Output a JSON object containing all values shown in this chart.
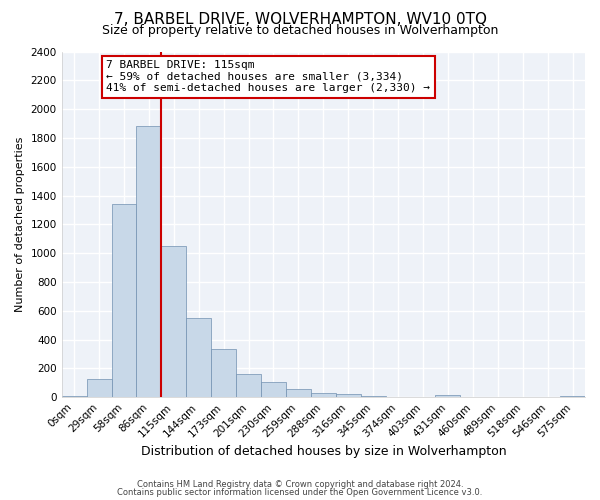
{
  "title": "7, BARBEL DRIVE, WOLVERHAMPTON, WV10 0TQ",
  "subtitle": "Size of property relative to detached houses in Wolverhampton",
  "xlabel": "Distribution of detached houses by size in Wolverhampton",
  "ylabel": "Number of detached properties",
  "footer_lines": [
    "Contains HM Land Registry data © Crown copyright and database right 2024.",
    "Contains public sector information licensed under the Open Government Licence v3.0."
  ],
  "bin_labels": [
    "0sqm",
    "29sqm",
    "58sqm",
    "86sqm",
    "115sqm",
    "144sqm",
    "173sqm",
    "201sqm",
    "230sqm",
    "259sqm",
    "288sqm",
    "316sqm",
    "345sqm",
    "374sqm",
    "403sqm",
    "431sqm",
    "460sqm",
    "489sqm",
    "518sqm",
    "546sqm",
    "575sqm"
  ],
  "bar_values": [
    10,
    125,
    1340,
    1880,
    1050,
    550,
    335,
    160,
    105,
    55,
    30,
    20,
    10,
    5,
    2,
    15,
    2,
    2,
    2,
    2,
    10
  ],
  "bar_color": "#c8d8e8",
  "bar_edge_color": "#7090b0",
  "vline_x_index": 4,
  "vline_color": "#cc0000",
  "annotation_text": "7 BARBEL DRIVE: 115sqm\n← 59% of detached houses are smaller (3,334)\n41% of semi-detached houses are larger (2,330) →",
  "annotation_box_color": "#ffffff",
  "annotation_box_edge_color": "#cc0000",
  "ylim": [
    0,
    2400
  ],
  "yticks": [
    0,
    200,
    400,
    600,
    800,
    1000,
    1200,
    1400,
    1600,
    1800,
    2000,
    2200,
    2400
  ],
  "bg_color": "#ffffff",
  "plot_bg_color": "#eef2f8",
  "grid_color": "#ffffff",
  "title_fontsize": 11,
  "subtitle_fontsize": 9,
  "xlabel_fontsize": 9,
  "ylabel_fontsize": 8,
  "tick_fontsize": 7.5,
  "annot_fontsize": 8,
  "footer_fontsize": 6
}
